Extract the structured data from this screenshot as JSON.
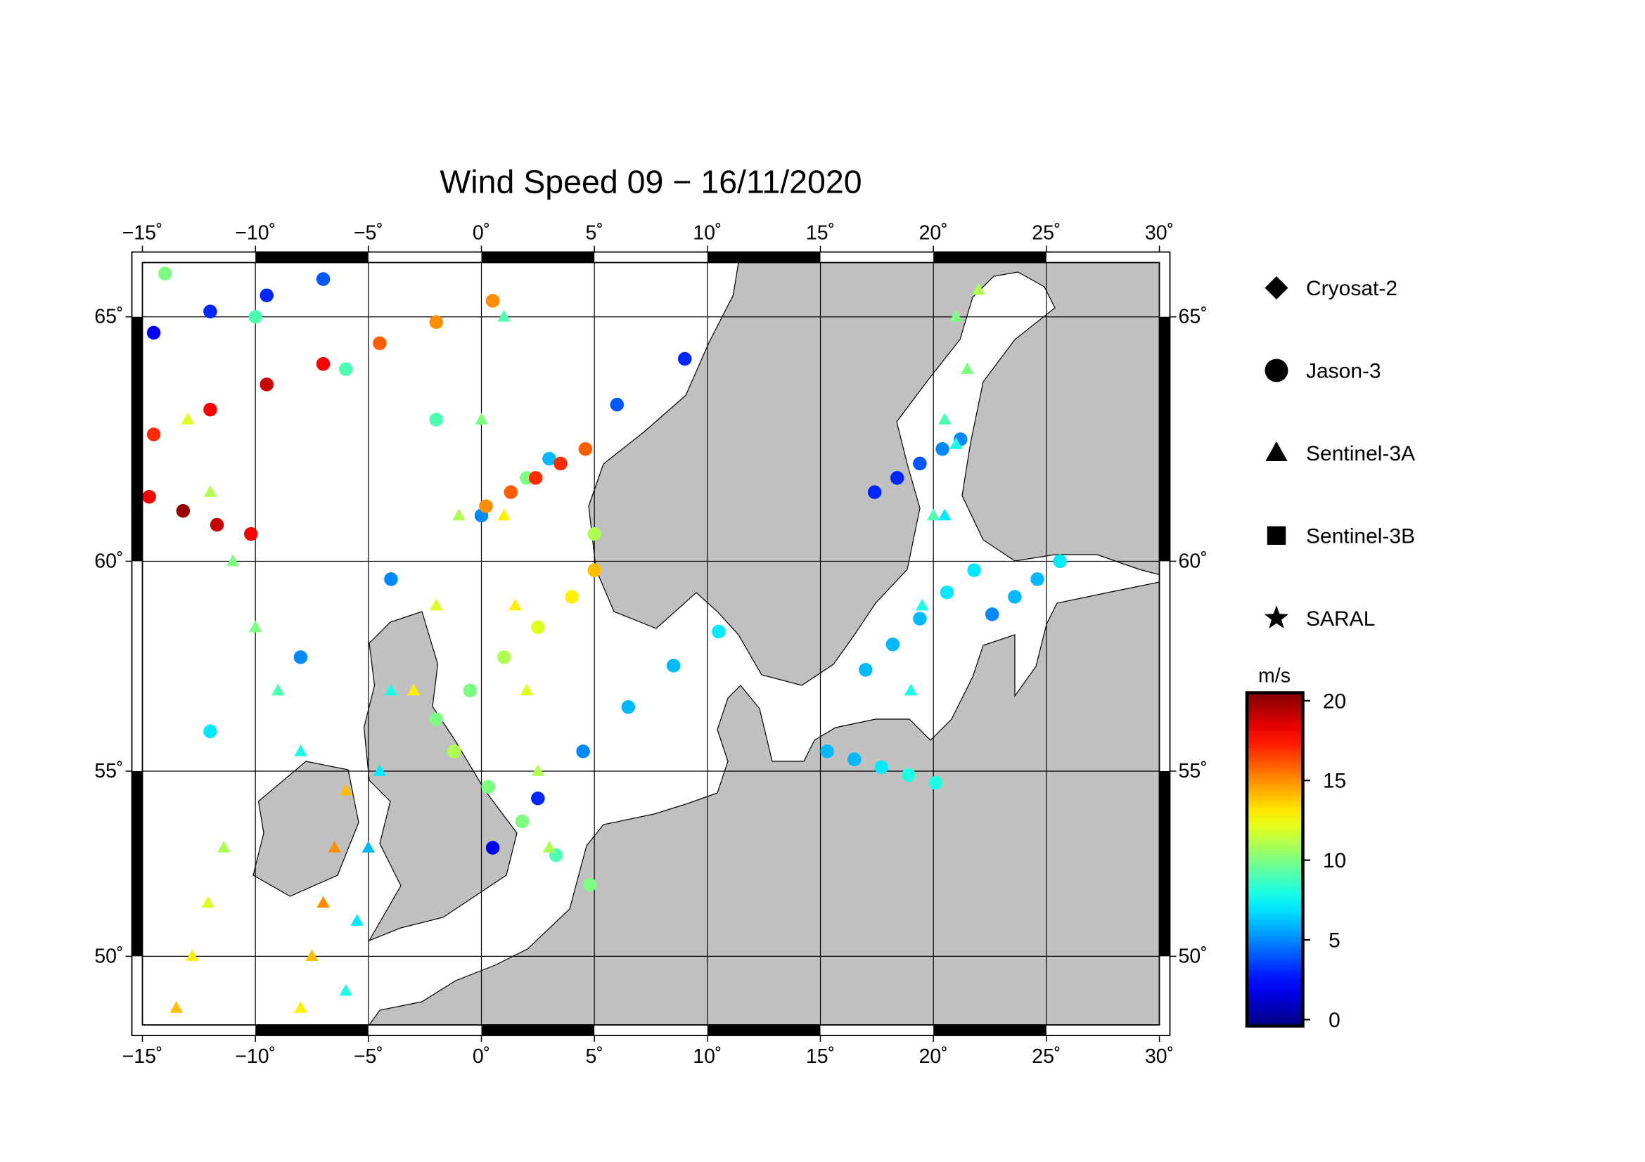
{
  "title": "Wind Speed 09 − 16/11/2020",
  "map": {
    "xlim": [
      -15,
      30
    ],
    "ylim": [
      48,
      66
    ],
    "grid": true,
    "xticks": [
      {
        "value": -15,
        "label": "−15˚"
      },
      {
        "value": -10,
        "label": "−10˚"
      },
      {
        "value": -5,
        "label": "−5˚"
      },
      {
        "value": 0,
        "label": "0˚"
      },
      {
        "value": 5,
        "label": "5˚"
      },
      {
        "value": 10,
        "label": "10˚"
      },
      {
        "value": 15,
        "label": "15˚"
      },
      {
        "value": 20,
        "label": "20˚"
      },
      {
        "value": 25,
        "label": "25˚"
      },
      {
        "value": 30,
        "label": "30˚"
      }
    ],
    "yticks": [
      {
        "value": 50,
        "label": "50˚"
      },
      {
        "value": 55,
        "label": "55˚"
      },
      {
        "value": 60,
        "label": "60˚"
      },
      {
        "value": 65,
        "label": "65˚"
      }
    ]
  },
  "legend": {
    "items": [
      {
        "name": "Cryosat-2",
        "marker": "diamond"
      },
      {
        "name": "Jason-3",
        "marker": "circle"
      },
      {
        "name": "Sentinel-3A",
        "marker": "triangle"
      },
      {
        "name": "Sentinel-3B",
        "marker": "square"
      },
      {
        "name": "SARAL",
        "marker": "star"
      }
    ]
  },
  "colorbar": {
    "unit": "m/s",
    "colormap": "jet",
    "clim": [
      -0.4,
      20.5
    ],
    "ticks": [
      0,
      5,
      10,
      15,
      20
    ]
  },
  "tracks": [
    {
      "sensor": "Jason-3",
      "lon": [
        -14.5,
        -12,
        -9.5,
        -7,
        -4.5,
        -2,
        0.5
      ],
      "lat": [
        62.7,
        63.2,
        63.7,
        64.1,
        64.5,
        64.9,
        65.3
      ],
      "values": [
        17,
        18,
        19,
        18,
        16,
        15,
        15
      ]
    },
    {
      "sensor": "Jason-3",
      "lon": [
        -12,
        -8,
        -4,
        0,
        3,
        6,
        9
      ],
      "lat": [
        56,
        57.8,
        59.6,
        61,
        62.2,
        63.3,
        64.2
      ],
      "values": [
        7,
        5,
        5,
        5,
        6,
        4,
        3
      ]
    },
    {
      "sensor": "Jason-3",
      "lon": [
        -14,
        -10,
        -6,
        -2,
        2,
        5
      ],
      "lat": [
        65.8,
        65,
        64,
        63,
        61.8,
        60.6
      ],
      "values": [
        10,
        9,
        9,
        9,
        10,
        11
      ]
    },
    {
      "sensor": "Jason-3",
      "lon": [
        -14.5,
        -12,
        -9.5,
        -7
      ],
      "lat": [
        64.7,
        65.1,
        65.4,
        65.7
      ],
      "values": [
        2,
        3,
        3,
        4
      ]
    },
    {
      "sensor": "Jason-3",
      "lon": [
        -2,
        -0.5,
        1,
        2.5,
        4,
        5
      ],
      "lat": [
        56.3,
        57,
        57.8,
        58.5,
        59.2,
        59.8
      ],
      "values": [
        10,
        10,
        11,
        12,
        13,
        14
      ]
    },
    {
      "sensor": "Jason-3",
      "lon": [
        0.5,
        2.5,
        4.5,
        6.5,
        8.5,
        10.5
      ],
      "lat": [
        53,
        54.3,
        55.5,
        56.6,
        57.6,
        58.4
      ],
      "values": [
        2,
        3,
        5,
        6,
        6,
        7
      ]
    },
    {
      "sensor": "Jason-3",
      "lon": [
        -1.2,
        0.3,
        1.8,
        3.3,
        4.8
      ],
      "lat": [
        55.5,
        54.6,
        53.7,
        52.8,
        52
      ],
      "values": [
        11,
        10,
        10,
        9,
        10
      ]
    },
    {
      "sensor": "Jason-3",
      "lon": [
        17,
        18.2,
        19.4,
        20.6,
        21.8
      ],
      "lat": [
        57.5,
        58.1,
        58.7,
        59.3,
        59.8
      ],
      "values": [
        6,
        6,
        6,
        7,
        7
      ]
    },
    {
      "sensor": "Jason-3",
      "lon": [
        15.3,
        16.5,
        17.7,
        18.9,
        20.1
      ],
      "lat": [
        55.5,
        55.3,
        55.1,
        54.9,
        54.7
      ],
      "values": [
        6,
        6,
        7,
        8,
        8
      ]
    },
    {
      "sensor": "Jason-3",
      "lon": [
        17.4,
        18.4,
        19.4,
        20.4,
        21.2
      ],
      "lat": [
        61.5,
        61.8,
        62.1,
        62.4,
        62.6
      ],
      "values": [
        3,
        3,
        4,
        5,
        5
      ]
    },
    {
      "sensor": "Jason-3",
      "lon": [
        22.6,
        23.6,
        24.6,
        25.6
      ],
      "lat": [
        58.8,
        59.2,
        59.6,
        60
      ],
      "values": [
        5,
        6,
        6,
        7
      ]
    },
    {
      "sensor": "Jason-3",
      "lon": [
        -14.7,
        -13.2,
        -11.7,
        -10.2
      ],
      "lat": [
        61.4,
        61.1,
        60.8,
        60.6
      ],
      "values": [
        18,
        20,
        19,
        18
      ]
    },
    {
      "sensor": "Jason-3",
      "lon": [
        0.2,
        1.3,
        2.4,
        3.5,
        4.6
      ],
      "lat": [
        61.2,
        61.5,
        61.8,
        62.1,
        62.4
      ],
      "values": [
        15,
        16,
        17,
        17,
        16
      ]
    },
    {
      "sensor": "Sentinel-3A",
      "lon": [
        -13,
        -12,
        -11,
        -10,
        -9,
        -8
      ],
      "lat": [
        63,
        61.5,
        60,
        58.5,
        57,
        55.5
      ],
      "values": [
        12,
        11,
        10,
        10,
        9,
        8
      ]
    },
    {
      "sensor": "Sentinel-3A",
      "lon": [
        -3,
        -2,
        -1,
        0,
        1
      ],
      "lat": [
        57,
        59,
        61,
        63,
        65
      ],
      "values": [
        13,
        12,
        11,
        10,
        9
      ]
    },
    {
      "sensor": "Sentinel-3A",
      "lon": [
        -6,
        -5.5,
        -5,
        -4.5,
        -4
      ],
      "lat": [
        49,
        51,
        53,
        55,
        57
      ],
      "values": [
        8,
        7,
        6,
        7,
        8
      ]
    },
    {
      "sensor": "Sentinel-3A",
      "lon": [
        3,
        2.5,
        2,
        1.5,
        1
      ],
      "lat": [
        53,
        55,
        57,
        59,
        61
      ],
      "values": [
        11,
        11,
        12,
        13,
        13
      ]
    },
    {
      "sensor": "Sentinel-3A",
      "lon": [
        19,
        19.5,
        20,
        20.5,
        21
      ],
      "lat": [
        57,
        59,
        61,
        63,
        65
      ],
      "values": [
        8,
        8,
        9,
        9,
        10
      ]
    },
    {
      "sensor": "Sentinel-3A",
      "lon": [
        22,
        21.5,
        21,
        20.5
      ],
      "lat": [
        65.5,
        64,
        62.5,
        61
      ],
      "values": [
        11,
        10,
        8,
        7
      ]
    },
    {
      "sensor": "Sentinel-3A",
      "lon": [
        -8,
        -7.5,
        -7,
        -6.5,
        -6
      ],
      "lat": [
        48.5,
        50,
        51.5,
        53,
        54.5
      ],
      "values": [
        13,
        14,
        15,
        15,
        14
      ]
    },
    {
      "sensor": "Sentinel-3A",
      "lon": [
        -13.5,
        -12.8,
        -12.1,
        -11.4
      ],
      "lat": [
        48.5,
        50,
        51.5,
        53
      ],
      "values": [
        14,
        13,
        12,
        11
      ]
    }
  ]
}
